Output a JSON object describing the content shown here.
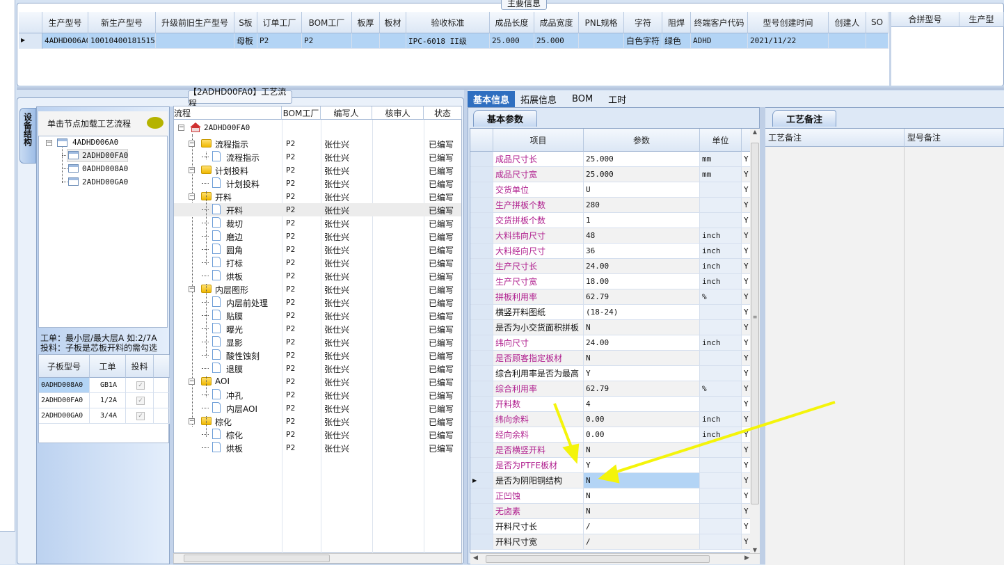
{
  "main_info": {
    "title": "主要信息",
    "columns": [
      "生产型号",
      "新生产型号",
      "升级前旧生产型号",
      "S板",
      "订单工厂",
      "BOM工厂",
      "板厚",
      "板材",
      "验收标准",
      "成品长度",
      "成品宽度",
      "PNL规格",
      "字符",
      "阻焊",
      "终端客户代码",
      "型号创建时间",
      "创建人",
      "SO"
    ],
    "rows": [
      [
        "4ADHD006A0",
        "10010400181515",
        "",
        "母板",
        "P2",
        "P2",
        "",
        "",
        "IPC-6018 II级",
        "25.000",
        "25.000",
        "",
        "白色字符",
        "绿色",
        "ADHD",
        "2021/11/22",
        "",
        ""
      ]
    ],
    "merge_columns": [
      "合拼型号",
      "生产型"
    ]
  },
  "left": {
    "vertical_tab": "设备结构",
    "tree_hint": "单击节点加载工艺流程",
    "tree": {
      "root": "4ADHD006A0",
      "children": [
        "2ADHD00FA0",
        "0ADHD008A0",
        "2ADHD00GA0"
      ],
      "selected": "2ADHD00FA0"
    },
    "notes": [
      "工单：最小层/最大层A 如:2/7A",
      "投料：子板是芯板开料的需勾选"
    ],
    "sub_columns": [
      "子板型号",
      "工单",
      "投料"
    ],
    "sub_rows": [
      [
        "0ADHD008A0",
        "GB1A",
        true
      ],
      [
        "2ADHD00FA0",
        "1/2A",
        true
      ],
      [
        "2ADHD00GA0",
        "3/4A",
        true
      ]
    ]
  },
  "process": {
    "title": "【2ADHD00FA0】工艺流程",
    "columns": [
      "流程",
      "BOM工厂",
      "编写人",
      "核审人",
      "状态"
    ],
    "root": "2ADHD00FA0",
    "rows": [
      {
        "name": "流程指示",
        "level": 1,
        "bom": "P2",
        "writer": "张仕兴",
        "reviewer": "",
        "status": "已编写"
      },
      {
        "name": "流程指示",
        "level": 2,
        "bom": "P2",
        "writer": "张仕兴",
        "reviewer": "",
        "status": "已编写"
      },
      {
        "name": "计划投料",
        "level": 1,
        "bom": "P2",
        "writer": "张仕兴",
        "reviewer": "",
        "status": "已编写"
      },
      {
        "name": "计划投料",
        "level": 2,
        "bom": "P2",
        "writer": "张仕兴",
        "reviewer": "",
        "status": "已编写"
      },
      {
        "name": "开料",
        "level": 1,
        "bom": "P2",
        "writer": "张仕兴",
        "reviewer": "",
        "status": "已编写"
      },
      {
        "name": "开料",
        "level": 2,
        "bom": "P2",
        "writer": "张仕兴",
        "reviewer": "",
        "status": "已编写",
        "selected": true
      },
      {
        "name": "裁切",
        "level": 2,
        "bom": "P2",
        "writer": "张仕兴",
        "reviewer": "",
        "status": "已编写"
      },
      {
        "name": "磨边",
        "level": 2,
        "bom": "P2",
        "writer": "张仕兴",
        "reviewer": "",
        "status": "已编写"
      },
      {
        "name": "圆角",
        "level": 2,
        "bom": "P2",
        "writer": "张仕兴",
        "reviewer": "",
        "status": "已编写"
      },
      {
        "name": "打标",
        "level": 2,
        "bom": "P2",
        "writer": "张仕兴",
        "reviewer": "",
        "status": "已编写"
      },
      {
        "name": "烘板",
        "level": 2,
        "bom": "P2",
        "writer": "张仕兴",
        "reviewer": "",
        "status": "已编写"
      },
      {
        "name": "内层图形",
        "level": 1,
        "bom": "P2",
        "writer": "张仕兴",
        "reviewer": "",
        "status": "已编写"
      },
      {
        "name": "内层前处理",
        "level": 2,
        "bom": "P2",
        "writer": "张仕兴",
        "reviewer": "",
        "status": "已编写"
      },
      {
        "name": "贴膜",
        "level": 2,
        "bom": "P2",
        "writer": "张仕兴",
        "reviewer": "",
        "status": "已编写"
      },
      {
        "name": "曝光",
        "level": 2,
        "bom": "P2",
        "writer": "张仕兴",
        "reviewer": "",
        "status": "已编写"
      },
      {
        "name": "显影",
        "level": 2,
        "bom": "P2",
        "writer": "张仕兴",
        "reviewer": "",
        "status": "已编写"
      },
      {
        "name": "酸性蚀刻",
        "level": 2,
        "bom": "P2",
        "writer": "张仕兴",
        "reviewer": "",
        "status": "已编写"
      },
      {
        "name": "退膜",
        "level": 2,
        "bom": "P2",
        "writer": "张仕兴",
        "reviewer": "",
        "status": "已编写"
      },
      {
        "name": "AOI",
        "level": 1,
        "bom": "P2",
        "writer": "张仕兴",
        "reviewer": "",
        "status": "已编写"
      },
      {
        "name": "冲孔",
        "level": 2,
        "bom": "P2",
        "writer": "张仕兴",
        "reviewer": "",
        "status": "已编写"
      },
      {
        "name": "内层AOI",
        "level": 2,
        "bom": "P2",
        "writer": "张仕兴",
        "reviewer": "",
        "status": "已编写"
      },
      {
        "name": "棕化",
        "level": 1,
        "bom": "P2",
        "writer": "张仕兴",
        "reviewer": "",
        "status": "已编写"
      },
      {
        "name": "棕化",
        "level": 2,
        "bom": "P2",
        "writer": "张仕兴",
        "reviewer": "",
        "status": "已编写"
      },
      {
        "name": "烘板",
        "level": 2,
        "bom": "P2",
        "writer": "张仕兴",
        "reviewer": "",
        "status": "已编写"
      }
    ]
  },
  "tabs": [
    "基本信息",
    "拓展信息",
    "BOM",
    "工时"
  ],
  "active_tab": "基本信息",
  "params": {
    "subtab": "基本参数",
    "columns": [
      "项目",
      "参数",
      "单位"
    ],
    "rows": [
      {
        "item": "成品尺寸长",
        "value": "25.000",
        "unit": "mm",
        "flag": "Y",
        "required": true
      },
      {
        "item": "成品尺寸宽",
        "value": "25.000",
        "unit": "mm",
        "flag": "Y",
        "required": true
      },
      {
        "item": "交货单位",
        "value": "U",
        "unit": "",
        "flag": "Y",
        "required": true
      },
      {
        "item": "生产拼板个数",
        "value": "280",
        "unit": "",
        "flag": "Y",
        "required": true
      },
      {
        "item": "交货拼板个数",
        "value": "1",
        "unit": "",
        "flag": "Y",
        "required": true
      },
      {
        "item": "大料纬向尺寸",
        "value": "48",
        "unit": "inch",
        "flag": "Y",
        "required": true
      },
      {
        "item": "大料经向尺寸",
        "value": "36",
        "unit": "inch",
        "flag": "Y",
        "required": true
      },
      {
        "item": "生产尺寸长",
        "value": "24.00",
        "unit": "inch",
        "flag": "Y",
        "required": true
      },
      {
        "item": "生产尺寸宽",
        "value": "18.00",
        "unit": "inch",
        "flag": "Y",
        "required": true
      },
      {
        "item": "拼板利用率",
        "value": "62.79",
        "unit": "%",
        "flag": "Y",
        "required": true
      },
      {
        "item": "横竖开料图纸",
        "value": "(18-24)",
        "unit": "",
        "flag": "Y",
        "required": false
      },
      {
        "item": "是否为小交货面积拼板",
        "value": "N",
        "unit": "",
        "flag": "Y",
        "required": false
      },
      {
        "item": "纬向尺寸",
        "value": "24.00",
        "unit": "inch",
        "flag": "Y",
        "required": true
      },
      {
        "item": "是否顾客指定板材",
        "value": "N",
        "unit": "",
        "flag": "Y",
        "required": true
      },
      {
        "item": "综合利用率是否为最高",
        "value": "Y",
        "unit": "",
        "flag": "Y",
        "required": false
      },
      {
        "item": "综合利用率",
        "value": "62.79",
        "unit": "%",
        "flag": "Y",
        "required": true
      },
      {
        "item": "开料数",
        "value": "4",
        "unit": "",
        "flag": "Y",
        "required": true
      },
      {
        "item": "纬向余料",
        "value": "0.00",
        "unit": "inch",
        "flag": "Y",
        "required": true
      },
      {
        "item": "经向余料",
        "value": "0.00",
        "unit": "inch",
        "flag": "Y",
        "required": true
      },
      {
        "item": "是否横竖开料",
        "value": "N",
        "unit": "",
        "flag": "Y",
        "required": true
      },
      {
        "item": "是否为PTFE板材",
        "value": "Y",
        "unit": "",
        "flag": "Y",
        "required": true
      },
      {
        "item": "是否为阴阳铜结构",
        "value": "N",
        "unit": "",
        "flag": "Y",
        "required": false,
        "selected": true
      },
      {
        "item": "正凹蚀",
        "value": "N",
        "unit": "",
        "flag": "Y",
        "required": true
      },
      {
        "item": "无卤素",
        "value": "N",
        "unit": "",
        "flag": "Y",
        "required": true
      },
      {
        "item": "开料尺寸长",
        "value": "/",
        "unit": "",
        "flag": "Y",
        "required": false
      },
      {
        "item": "开料尺寸宽",
        "value": "/",
        "unit": "",
        "flag": "Y",
        "required": false
      }
    ]
  },
  "remarks": {
    "tab": "工艺备注",
    "columns": [
      "工艺备注",
      "型号备注"
    ]
  },
  "colors": {
    "required_label": "#b0208f",
    "selection": "#b3d4f5",
    "active_tab": "#2f6fc0",
    "annotation_arrow": "#f4f40a"
  }
}
